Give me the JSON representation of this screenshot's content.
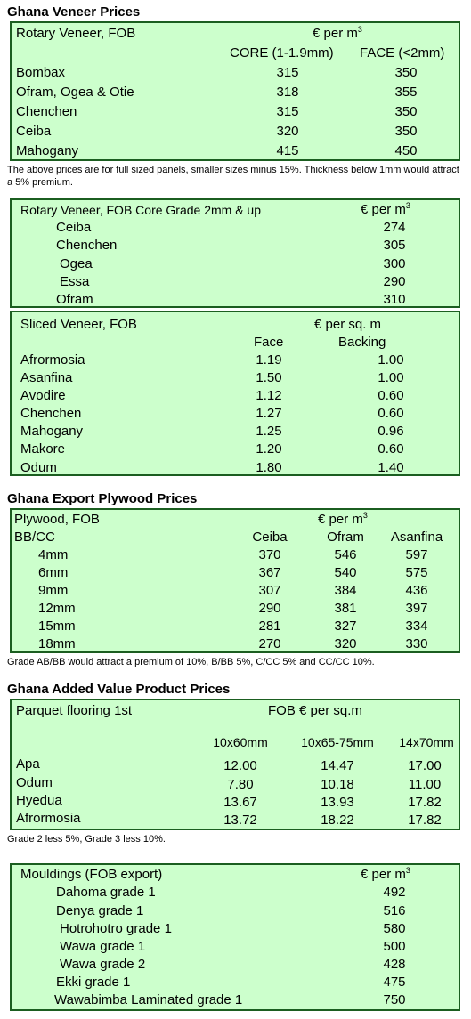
{
  "sections": {
    "veneer_title": "Ghana Veneer Prices",
    "plywood_title": "Ghana Export Plywood Prices",
    "added_title": "Ghana Added Value Product Prices"
  },
  "rotary": {
    "title": "Rotary Veneer, FOB",
    "unit": "€ per m",
    "unit_sup": "3",
    "col1": "CORE (1-1.9mm)",
    "col2": "FACE (<2mm)",
    "rows": [
      {
        "name": "Bombax",
        "core": "315",
        "face": "350"
      },
      {
        "name": "Ofram, Ogea  & Otie",
        "core": "318",
        "face": "355"
      },
      {
        "name": "Chenchen",
        "core": "315",
        "face": "350"
      },
      {
        "name": "Ceiba",
        "core": "320",
        "face": "350"
      },
      {
        "name": "Mahogany",
        "core": "415",
        "face": "450"
      }
    ],
    "note": "The above prices are for full sized panels, smaller sizes minus 15%. Thickness below 1mm would attract a 5% premium."
  },
  "rotary_core": {
    "title": "Rotary Veneer, FOB Core Grade 2mm & up",
    "unit": "€ per m",
    "unit_sup": "3",
    "rows": [
      {
        "name": "Ceiba",
        "price": "274"
      },
      {
        "name": "Chenchen",
        "price": "305"
      },
      {
        "name": "Ogea",
        "price": "300"
      },
      {
        "name": "Essa",
        "price": "290"
      },
      {
        "name": "Ofram",
        "price": "310"
      }
    ]
  },
  "sliced": {
    "title": "Sliced Veneer, FOB",
    "unit": "€ per sq. m",
    "col1": "Face",
    "col2": "Backing",
    "rows": [
      {
        "name": "Afrormosia",
        "face": "1.19",
        "backing": "1.00"
      },
      {
        "name": "Asanfina",
        "face": "1.50",
        "backing": "1.00"
      },
      {
        "name": "Avodire",
        "face": "1.12",
        "backing": "0.60"
      },
      {
        "name": "Chenchen",
        "face": "1.27",
        "backing": "0.60"
      },
      {
        "name": "Mahogany",
        "face": "1.25",
        "backing": "0.96"
      },
      {
        "name": "Makore",
        "face": "1.20",
        "backing": "0.60"
      },
      {
        "name": "Odum",
        "face": "1.80",
        "backing": "1.40"
      }
    ]
  },
  "plywood": {
    "title": "Plywood, FOB",
    "unit": "€ per m",
    "unit_sup": "3",
    "grade": "BB/CC",
    "cols": [
      "Ceiba",
      "Ofram",
      "Asanfina"
    ],
    "rows": [
      {
        "size": "4mm",
        "v": [
          "370",
          "546",
          "597"
        ]
      },
      {
        "size": "6mm",
        "v": [
          "367",
          "540",
          "575"
        ]
      },
      {
        "size": "9mm",
        "v": [
          "307",
          "384",
          "436"
        ]
      },
      {
        "size": "12mm",
        "v": [
          "290",
          "381",
          "397"
        ]
      },
      {
        "size": "15mm",
        "v": [
          "281",
          "327",
          "334"
        ]
      },
      {
        "size": "18mm",
        "v": [
          "270",
          "320",
          "330"
        ]
      }
    ],
    "note": "Grade AB/BB would attract a premium of 10%, B/BB 5%, C/CC 5% and CC/CC 10%."
  },
  "parquet": {
    "title": "Parquet flooring 1st",
    "unit": "FOB € per sq.m",
    "cols": [
      "10x60mm",
      "10x65-75mm",
      "14x70mm"
    ],
    "rows": [
      {
        "name": "Apa",
        "v": [
          "12.00",
          "14.47",
          "17.00"
        ]
      },
      {
        "name": "Odum",
        "v": [
          "7.80",
          "10.18",
          "11.00"
        ]
      },
      {
        "name": "Hyedua",
        "v": [
          "13.67",
          "13.93",
          "17.82"
        ]
      },
      {
        "name": "Afrormosia",
        "v": [
          "13.72",
          "18.22",
          "17.82"
        ]
      }
    ],
    "note": "Grade 2 less 5%, Grade 3 less 10%."
  },
  "mouldings": {
    "title": "Mouldings (FOB export)",
    "unit": "€ per m",
    "unit_sup": "3",
    "rows": [
      {
        "name": "Dahoma grade 1",
        "price": "492"
      },
      {
        "name": "Denya grade 1",
        "price": "516"
      },
      {
        "name": "Hotrohotro grade 1",
        "price": "580"
      },
      {
        "name": "Wawa grade 1",
        "price": "500"
      },
      {
        "name": "Wawa grade 2",
        "price": "428"
      },
      {
        "name": "Ekki grade 1",
        "price": "475"
      },
      {
        "name": "Wawabimba Laminated grade 1",
        "price": "750"
      }
    ]
  }
}
